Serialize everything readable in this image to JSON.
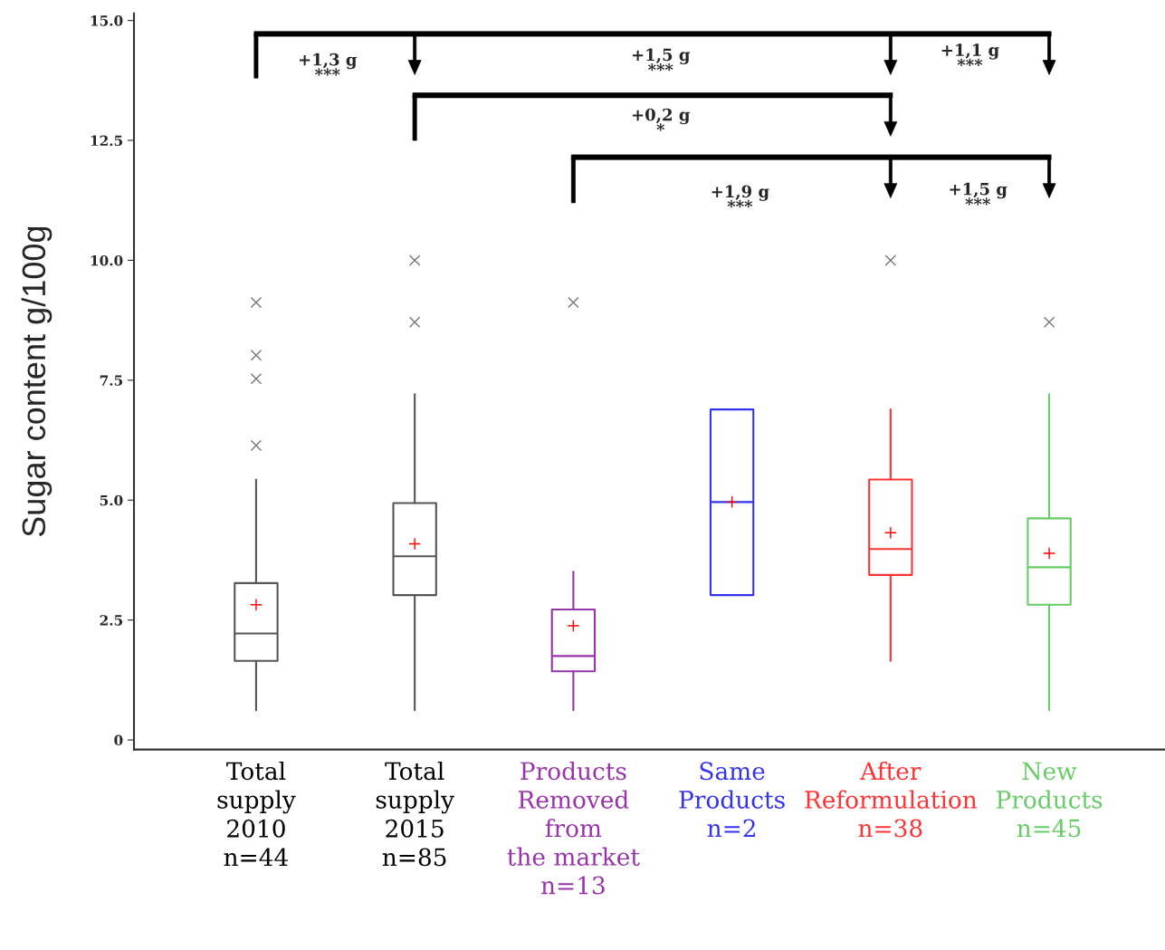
{
  "chart_data": {
    "type": "box",
    "ylabel": "Sugar content g/100g",
    "categories": [
      "Total\nsupply\n2010\nn=44",
      "Total\nsupply\n2015\nn=85",
      "Products\nRemoved\nfrom\nthe market\nn=13",
      "Same\nProducts\nn=2",
      "After\nReformulation\nn=38",
      "New\nProducts\nn=45"
    ],
    "colors": [
      "#555555",
      "#555555",
      "#9933aa",
      "#3333ee",
      "#ff3333",
      "#66cc66"
    ],
    "boxes": [
      {
        "low": 0.62,
        "q1": 1.65,
        "median": 2.22,
        "q3": 3.27,
        "high": 5.43,
        "mean": 2.82,
        "outliers": [
          9.12,
          8.02,
          7.53,
          6.14
        ]
      },
      {
        "low": 0.62,
        "q1": 3.02,
        "median": 3.83,
        "q3": 4.94,
        "high": 7.21,
        "mean": 4.09,
        "outliers": [
          10.0,
          8.71
        ]
      },
      {
        "low": 0.62,
        "q1": 1.43,
        "median": 1.75,
        "q3": 2.72,
        "high": 3.51,
        "mean": 2.38,
        "outliers": [
          9.12
        ]
      },
      {
        "low": 3.02,
        "q1": 3.02,
        "median": 4.96,
        "q3": 6.89,
        "high": 6.89,
        "mean": 4.96
      },
      {
        "low": 1.65,
        "q1": 3.44,
        "median": 3.98,
        "q3": 5.43,
        "high": 6.89,
        "mean": 4.32,
        "outliers": [
          10.0
        ]
      },
      {
        "low": 0.62,
        "q1": 2.82,
        "median": 3.6,
        "q3": 4.62,
        "high": 7.21,
        "mean": 3.89,
        "outliers": [
          8.71
        ]
      }
    ],
    "ylim": [
      -0.2,
      15.15
    ],
    "yticks": [
      0,
      2.5,
      {
        "value": 5,
        "label": "5.0"
      },
      7.5,
      {
        "value": 10,
        "label": "10.0"
      },
      12.5,
      {
        "value": 15,
        "label": "15.0"
      }
    ],
    "grid": false,
    "annotations": [
      "+1,3 g\n***",
      "+1,5 g\n***",
      "+1,1 g\n***",
      "+0,2 g\n*",
      "+1,9 g\n***",
      "+1,5 g\n***"
    ]
  }
}
